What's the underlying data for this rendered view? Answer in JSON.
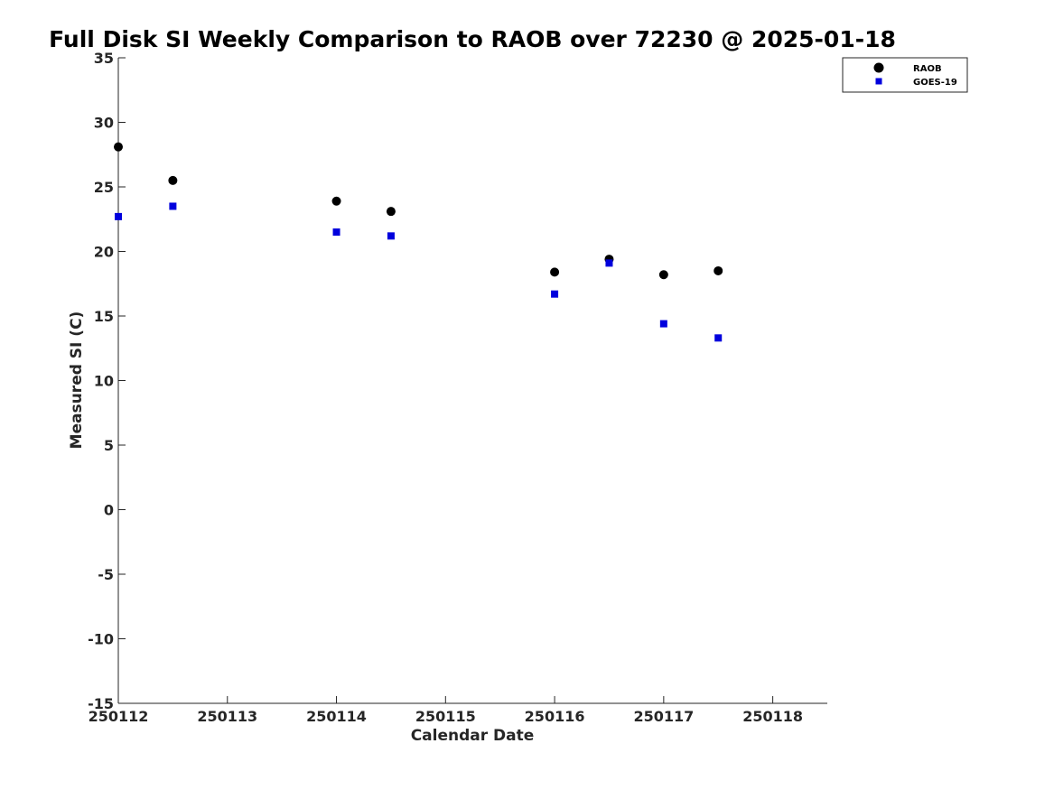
{
  "chart_data": {
    "type": "scatter",
    "title": "Full Disk SI Weekly Comparison to RAOB over 72230 @ 2025-01-18",
    "xlabel": "Calendar Date",
    "ylabel": "Measured SI (C)",
    "xlim": [
      250112,
      250118.5
    ],
    "ylim": [
      -15,
      35
    ],
    "x_ticks": [
      {
        "value": 250112,
        "label": "250112"
      },
      {
        "value": 250113,
        "label": "250113"
      },
      {
        "value": 250114,
        "label": "250114"
      },
      {
        "value": 250115,
        "label": "250115"
      },
      {
        "value": 250116,
        "label": "250116"
      },
      {
        "value": 250117,
        "label": "250117"
      },
      {
        "value": 250118,
        "label": "250118"
      }
    ],
    "y_ticks": [
      {
        "value": 35,
        "label": "35"
      },
      {
        "value": 30,
        "label": "30"
      },
      {
        "value": 25,
        "label": "25"
      },
      {
        "value": 20,
        "label": "20"
      },
      {
        "value": 15,
        "label": "15"
      },
      {
        "value": 10,
        "label": "10"
      },
      {
        "value": 5,
        "label": "5"
      },
      {
        "value": 0,
        "label": "0"
      },
      {
        "value": -5,
        "label": "-5"
      },
      {
        "value": -10,
        "label": "-10"
      },
      {
        "value": -15,
        "label": "-15"
      }
    ],
    "grid": false,
    "legend_position": "top-right",
    "series": [
      {
        "name": "RAOB",
        "marker": "circle",
        "color": "#000000",
        "points": [
          {
            "x": 250112.0,
            "y": 28.1
          },
          {
            "x": 250112.5,
            "y": 25.5
          },
          {
            "x": 250114.0,
            "y": 23.9
          },
          {
            "x": 250114.5,
            "y": 23.1
          },
          {
            "x": 250116.0,
            "y": 18.4
          },
          {
            "x": 250116.5,
            "y": 19.4
          },
          {
            "x": 250117.0,
            "y": 18.2
          },
          {
            "x": 250117.5,
            "y": 18.5
          }
        ]
      },
      {
        "name": "GOES-19",
        "marker": "square",
        "color": "#0000dd",
        "points": [
          {
            "x": 250112.0,
            "y": 22.7
          },
          {
            "x": 250112.5,
            "y": 23.5
          },
          {
            "x": 250114.0,
            "y": 21.5
          },
          {
            "x": 250114.5,
            "y": 21.2
          },
          {
            "x": 250116.0,
            "y": 16.7
          },
          {
            "x": 250116.5,
            "y": 19.1
          },
          {
            "x": 250117.0,
            "y": 14.4
          },
          {
            "x": 250117.5,
            "y": 13.3
          }
        ]
      }
    ]
  }
}
